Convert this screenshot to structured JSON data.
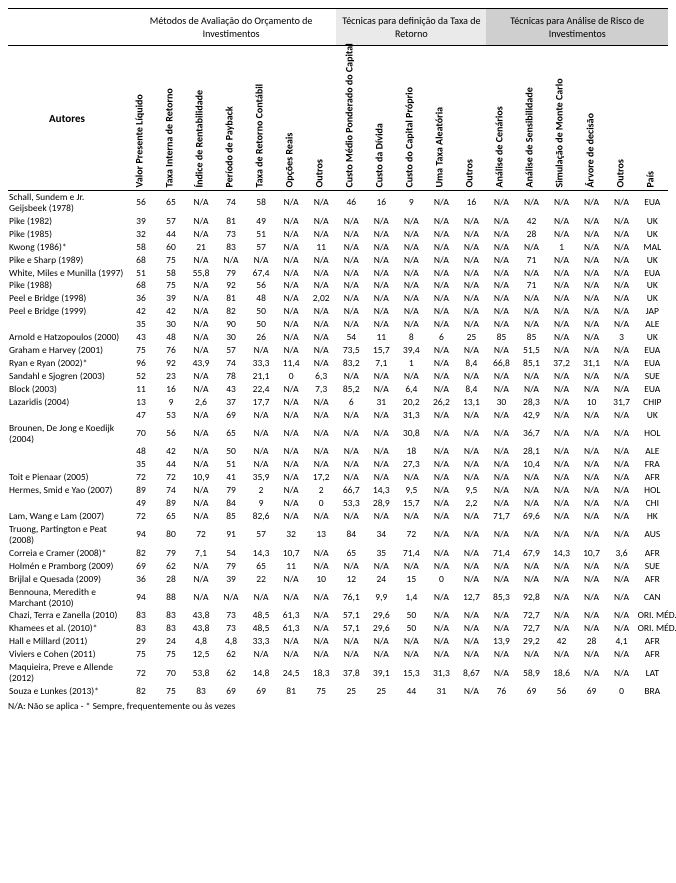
{
  "groups": [
    {
      "label": "Métodos de Avaliação do Orçamento de Investimentos",
      "span": 7,
      "class": "g1"
    },
    {
      "label": "Técnicas para definição da Taxa de Retorno",
      "span": 5,
      "class": "g2"
    },
    {
      "label": "Técnicas para Análise de Risco de Investimentos",
      "span": 6,
      "class": "g3"
    }
  ],
  "authors_label": "Autores",
  "columns": [
    "Valor Presente Líquido",
    "Taxa Interna de Retorno",
    "Índice de Rentabilidade",
    "Período de Payback",
    "Taxa de Retorno Contábil",
    "Opções Reais",
    "Outros",
    "Custo Médio Ponderado do Capital",
    "Custo da Dívida",
    "Custo do Capital Próprio",
    "Uma Taxa Aleatória",
    "Outros",
    "Análise de Cenários",
    "Análise de Sensibilidade",
    "Simulação de Monte Carlo",
    "Árvore de decisão",
    "Outros",
    "País"
  ],
  "rows": [
    {
      "a": "Schall, Sundem e Jr. Geijsbeek (1978)",
      "v": [
        "56",
        "65",
        "N/A",
        "74",
        "58",
        "N/A",
        "N/A",
        "46",
        "16",
        "9",
        "N/A",
        "16",
        "N/A",
        "N/A",
        "N/A",
        "N/A",
        "N/A",
        "EUA"
      ]
    },
    {
      "a": "Pike (1982)",
      "v": [
        "39",
        "57",
        "N/A",
        "81",
        "49",
        "N/A",
        "N/A",
        "N/A",
        "N/A",
        "N/A",
        "N/A",
        "N/A",
        "N/A",
        "42",
        "N/A",
        "N/A",
        "N/A",
        "UK"
      ]
    },
    {
      "a": "Pike (1985)",
      "v": [
        "32",
        "44",
        "N/A",
        "73",
        "51",
        "N/A",
        "N/A",
        "N/A",
        "N/A",
        "N/A",
        "N/A",
        "N/A",
        "N/A",
        "28",
        "N/A",
        "N/A",
        "N/A",
        "UK"
      ]
    },
    {
      "a": "Kwong (1986)*",
      "v": [
        "58",
        "60",
        "21",
        "83",
        "57",
        "N/A",
        "11",
        "N/A",
        "N/A",
        "N/A",
        "N/A",
        "N/A",
        "N/A",
        "N/A",
        "1",
        "N/A",
        "N/A",
        "MAL"
      ]
    },
    {
      "a": "Pike e Sharp (1989)",
      "v": [
        "68",
        "75",
        "N/A",
        "N/A",
        "N/A",
        "N/A",
        "N/A",
        "N/A",
        "N/A",
        "N/A",
        "N/A",
        "N/A",
        "N/A",
        "71",
        "N/A",
        "N/A",
        "N/A",
        "UK"
      ]
    },
    {
      "a": "White, Miles e Munilla (1997)",
      "v": [
        "51",
        "58",
        "55,8",
        "79",
        "67,4",
        "N/A",
        "N/A",
        "N/A",
        "N/A",
        "N/A",
        "N/A",
        "N/A",
        "N/A",
        "N/A",
        "N/A",
        "N/A",
        "N/A",
        "EUA"
      ]
    },
    {
      "a": "Pike (1988)",
      "v": [
        "68",
        "75",
        "N/A",
        "92",
        "56",
        "N/A",
        "N/A",
        "N/A",
        "N/A",
        "N/A",
        "N/A",
        "N/A",
        "N/A",
        "71",
        "N/A",
        "N/A",
        "N/A",
        "UK"
      ]
    },
    {
      "a": "Peel e Bridge (1998)",
      "v": [
        "36",
        "39",
        "N/A",
        "81",
        "48",
        "N/A",
        "2,02",
        "N/A",
        "N/A",
        "N/A",
        "N/A",
        "N/A",
        "N/A",
        "N/A",
        "N/A",
        "N/A",
        "N/A",
        "UK"
      ]
    },
    {
      "a": "Peel e Bridge (1999)",
      "v": [
        "42",
        "42",
        "N/A",
        "82",
        "50",
        "N/A",
        "N/A",
        "N/A",
        "N/A",
        "N/A",
        "N/A",
        "N/A",
        "N/A",
        "N/A",
        "N/A",
        "N/A",
        "N/A",
        "JAP"
      ]
    },
    {
      "a": "",
      "v": [
        "35",
        "30",
        "N/A",
        "90",
        "50",
        "N/A",
        "N/A",
        "N/A",
        "N/A",
        "N/A",
        "N/A",
        "N/A",
        "N/A",
        "N/A",
        "N/A",
        "N/A",
        "N/A",
        "ALE"
      ]
    },
    {
      "a": "Arnold e Hatzopoulos (2000)",
      "v": [
        "43",
        "48",
        "N/A",
        "30",
        "26",
        "N/A",
        "N/A",
        "54",
        "11",
        "8",
        "6",
        "25",
        "85",
        "85",
        "N/A",
        "N/A",
        "3",
        "UK"
      ]
    },
    {
      "a": "Graham e Harvey (2001)",
      "v": [
        "75",
        "76",
        "N/A",
        "57",
        "N/A",
        "N/A",
        "N/A",
        "73,5",
        "15,7",
        "39,4",
        "N/A",
        "N/A",
        "N/A",
        "51,5",
        "N/A",
        "N/A",
        "N/A",
        "EUA"
      ]
    },
    {
      "a": "Ryan e Ryan (2002)*",
      "v": [
        "96",
        "92",
        "43,9",
        "74",
        "33,3",
        "11,4",
        "N/A",
        "83,2",
        "7,1",
        "1",
        "N/A",
        "8,4",
        "66,8",
        "85,1",
        "37,2",
        "31,1",
        "N/A",
        "EUA"
      ]
    },
    {
      "a": "Sandahl e Sjogren (2003)",
      "v": [
        "52",
        "23",
        "N/A",
        "78",
        "21,1",
        "0",
        "6,3",
        "N/A",
        "N/A",
        "N/A",
        "N/A",
        "N/A",
        "N/A",
        "N/A",
        "N/A",
        "N/A",
        "N/A",
        "SUE"
      ]
    },
    {
      "a": "Block (2003)",
      "v": [
        "11",
        "16",
        "N/A",
        "43",
        "22,4",
        "N/A",
        "7,3",
        "85,2",
        "N/A",
        "6,4",
        "N/A",
        "8,4",
        "N/A",
        "N/A",
        "N/A",
        "N/A",
        "N/A",
        "EUA"
      ]
    },
    {
      "a": "Lazaridis (2004)",
      "v": [
        "13",
        "9",
        "2,6",
        "37",
        "17,7",
        "N/A",
        "N/A",
        "6",
        "31",
        "20,2",
        "26,2",
        "13,1",
        "30",
        "28,3",
        "N/A",
        "10",
        "31,7",
        "CHIP"
      ]
    },
    {
      "a": "",
      "v": [
        "47",
        "53",
        "N/A",
        "69",
        "N/A",
        "N/A",
        "N/A",
        "N/A",
        "N/A",
        "31,3",
        "N/A",
        "N/A",
        "N/A",
        "42,9",
        "N/A",
        "N/A",
        "N/A",
        "UK"
      ]
    },
    {
      "a": "Brounen, De Jong e Koedijk (2004)",
      "v": [
        "70",
        "56",
        "N/A",
        "65",
        "N/A",
        "N/A",
        "N/A",
        "N/A",
        "N/A",
        "30,8",
        "N/A",
        "N/A",
        "N/A",
        "36,7",
        "N/A",
        "N/A",
        "N/A",
        "HOL"
      ]
    },
    {
      "a": "",
      "v": [
        "48",
        "42",
        "N/A",
        "50",
        "N/A",
        "N/A",
        "N/A",
        "N/A",
        "N/A",
        "18",
        "N/A",
        "N/A",
        "N/A",
        "28,1",
        "N/A",
        "N/A",
        "N/A",
        "ALE"
      ]
    },
    {
      "a": "",
      "v": [
        "35",
        "44",
        "N/A",
        "51",
        "N/A",
        "N/A",
        "N/A",
        "N/A",
        "N/A",
        "27,3",
        "N/A",
        "N/A",
        "N/A",
        "10,4",
        "N/A",
        "N/A",
        "N/A",
        "FRA"
      ]
    },
    {
      "a": "Toit e Pienaar (2005)",
      "v": [
        "72",
        "72",
        "10,9",
        "41",
        "35,9",
        "N/A",
        "17,2",
        "N/A",
        "N/A",
        "N/A",
        "N/A",
        "N/A",
        "N/A",
        "N/A",
        "N/A",
        "N/A",
        "N/A",
        "AFR"
      ]
    },
    {
      "a": "Hermes, Smid e Yao (2007)",
      "v": [
        "89",
        "74",
        "N/A",
        "79",
        "2",
        "N/A",
        "2",
        "66,7",
        "14,3",
        "9,5",
        "N/A",
        "9,5",
        "N/A",
        "N/A",
        "N/A",
        "N/A",
        "N/A",
        "HOL"
      ]
    },
    {
      "a": "",
      "v": [
        "49",
        "89",
        "N/A",
        "84",
        "9",
        "N/A",
        "0",
        "53,3",
        "28,9",
        "15,7",
        "N/A",
        "2,2",
        "N/A",
        "N/A",
        "N/A",
        "N/A",
        "N/A",
        "CHI"
      ]
    },
    {
      "a": "Lam, Wang e Lam (2007)",
      "v": [
        "72",
        "65",
        "N/A",
        "85",
        "82,6",
        "N/A",
        "N/A",
        "N/A",
        "N/A",
        "N/A",
        "N/A",
        "N/A",
        "71,7",
        "69,6",
        "N/A",
        "N/A",
        "N/A",
        "HK"
      ]
    },
    {
      "a": "Truong, Partington e Peat (2008)",
      "v": [
        "94",
        "80",
        "72",
        "91",
        "57",
        "32",
        "13",
        "84",
        "34",
        "72",
        "N/A",
        "N/A",
        "N/A",
        "N/A",
        "N/A",
        "N/A",
        "N/A",
        "AUS"
      ]
    },
    {
      "a": "Correia e Cramer (2008)*",
      "v": [
        "82",
        "79",
        "7,1",
        "54",
        "14,3",
        "10,7",
        "N/A",
        "65",
        "35",
        "71,4",
        "N/A",
        "N/A",
        "71,4",
        "67,9",
        "14,3",
        "10,7",
        "3,6",
        "AFR"
      ]
    },
    {
      "a": "Holmén e Pramborg (2009)",
      "v": [
        "69",
        "62",
        "N/A",
        "79",
        "65",
        "11",
        "N/A",
        "N/A",
        "N/A",
        "N/A",
        "N/A",
        "N/A",
        "N/A",
        "N/A",
        "N/A",
        "N/A",
        "N/A",
        "SUE"
      ]
    },
    {
      "a": "Brijlal e Quesada (2009)",
      "v": [
        "36",
        "28",
        "N/A",
        "39",
        "22",
        "N/A",
        "10",
        "12",
        "24",
        "15",
        "0",
        "N/A",
        "N/A",
        "N/A",
        "N/A",
        "N/A",
        "N/A",
        "AFR"
      ]
    },
    {
      "a": "Bennouna, Meredith e Marchant (2010)",
      "v": [
        "94",
        "88",
        "N/A",
        "N/A",
        "N/A",
        "N/A",
        "N/A",
        "76,1",
        "9,9",
        "1,4",
        "N/A",
        "12,7",
        "85,3",
        "92,8",
        "N/A",
        "N/A",
        "N/A",
        "CAN"
      ]
    },
    {
      "a": "Chazi, Terra e Zanella (2010)",
      "v": [
        "83",
        "83",
        "43,8",
        "73",
        "48,5",
        "61,3",
        "N/A",
        "57,1",
        "29,6",
        "50",
        "N/A",
        "N/A",
        "N/A",
        "72,7",
        "N/A",
        "N/A",
        "N/A",
        "ORI. MÉD."
      ]
    },
    {
      "a": "Khamees et al. (2010)*",
      "v": [
        "83",
        "83",
        "43,8",
        "73",
        "48,5",
        "61,3",
        "N/A",
        "57,1",
        "29,6",
        "50",
        "N/A",
        "N/A",
        "N/A",
        "72,7",
        "N/A",
        "N/A",
        "N/A",
        "ORI. MÉD."
      ]
    },
    {
      "a": "Hall e Millard (2011)",
      "v": [
        "29",
        "24",
        "4,8",
        "4,8",
        "33,3",
        "N/A",
        "N/A",
        "N/A",
        "N/A",
        "N/A",
        "N/A",
        "N/A",
        "13,9",
        "29,2",
        "42",
        "28",
        "4,1",
        "AFR"
      ]
    },
    {
      "a": "Viviers e Cohen (2011)",
      "v": [
        "75",
        "75",
        "12,5",
        "62",
        "N/A",
        "N/A",
        "N/A",
        "N/A",
        "N/A",
        "N/A",
        "N/A",
        "N/A",
        "N/A",
        "N/A",
        "N/A",
        "N/A",
        "N/A",
        "AFR"
      ]
    },
    {
      "a": "Maquieira, Preve e Allende (2012)",
      "v": [
        "72",
        "70",
        "53,8",
        "62",
        "14,8",
        "24,5",
        "18,3",
        "37,8",
        "39,1",
        "15,3",
        "31,3",
        "8,67",
        "N/A",
        "58,9",
        "18,6",
        "N/A",
        "N/A",
        "LAT"
      ]
    },
    {
      "a": "Souza e Lunkes (2013)*",
      "v": [
        "82",
        "75",
        "83",
        "69",
        "69",
        "81",
        "75",
        "25",
        "25",
        "44",
        "31",
        "N/A",
        "76",
        "69",
        "56",
        "69",
        "0",
        "BRA"
      ]
    }
  ],
  "footnote1": "N/A: Não se aplica - * Sempre, frequentemente ou às vezes",
  "footnote2": ""
}
